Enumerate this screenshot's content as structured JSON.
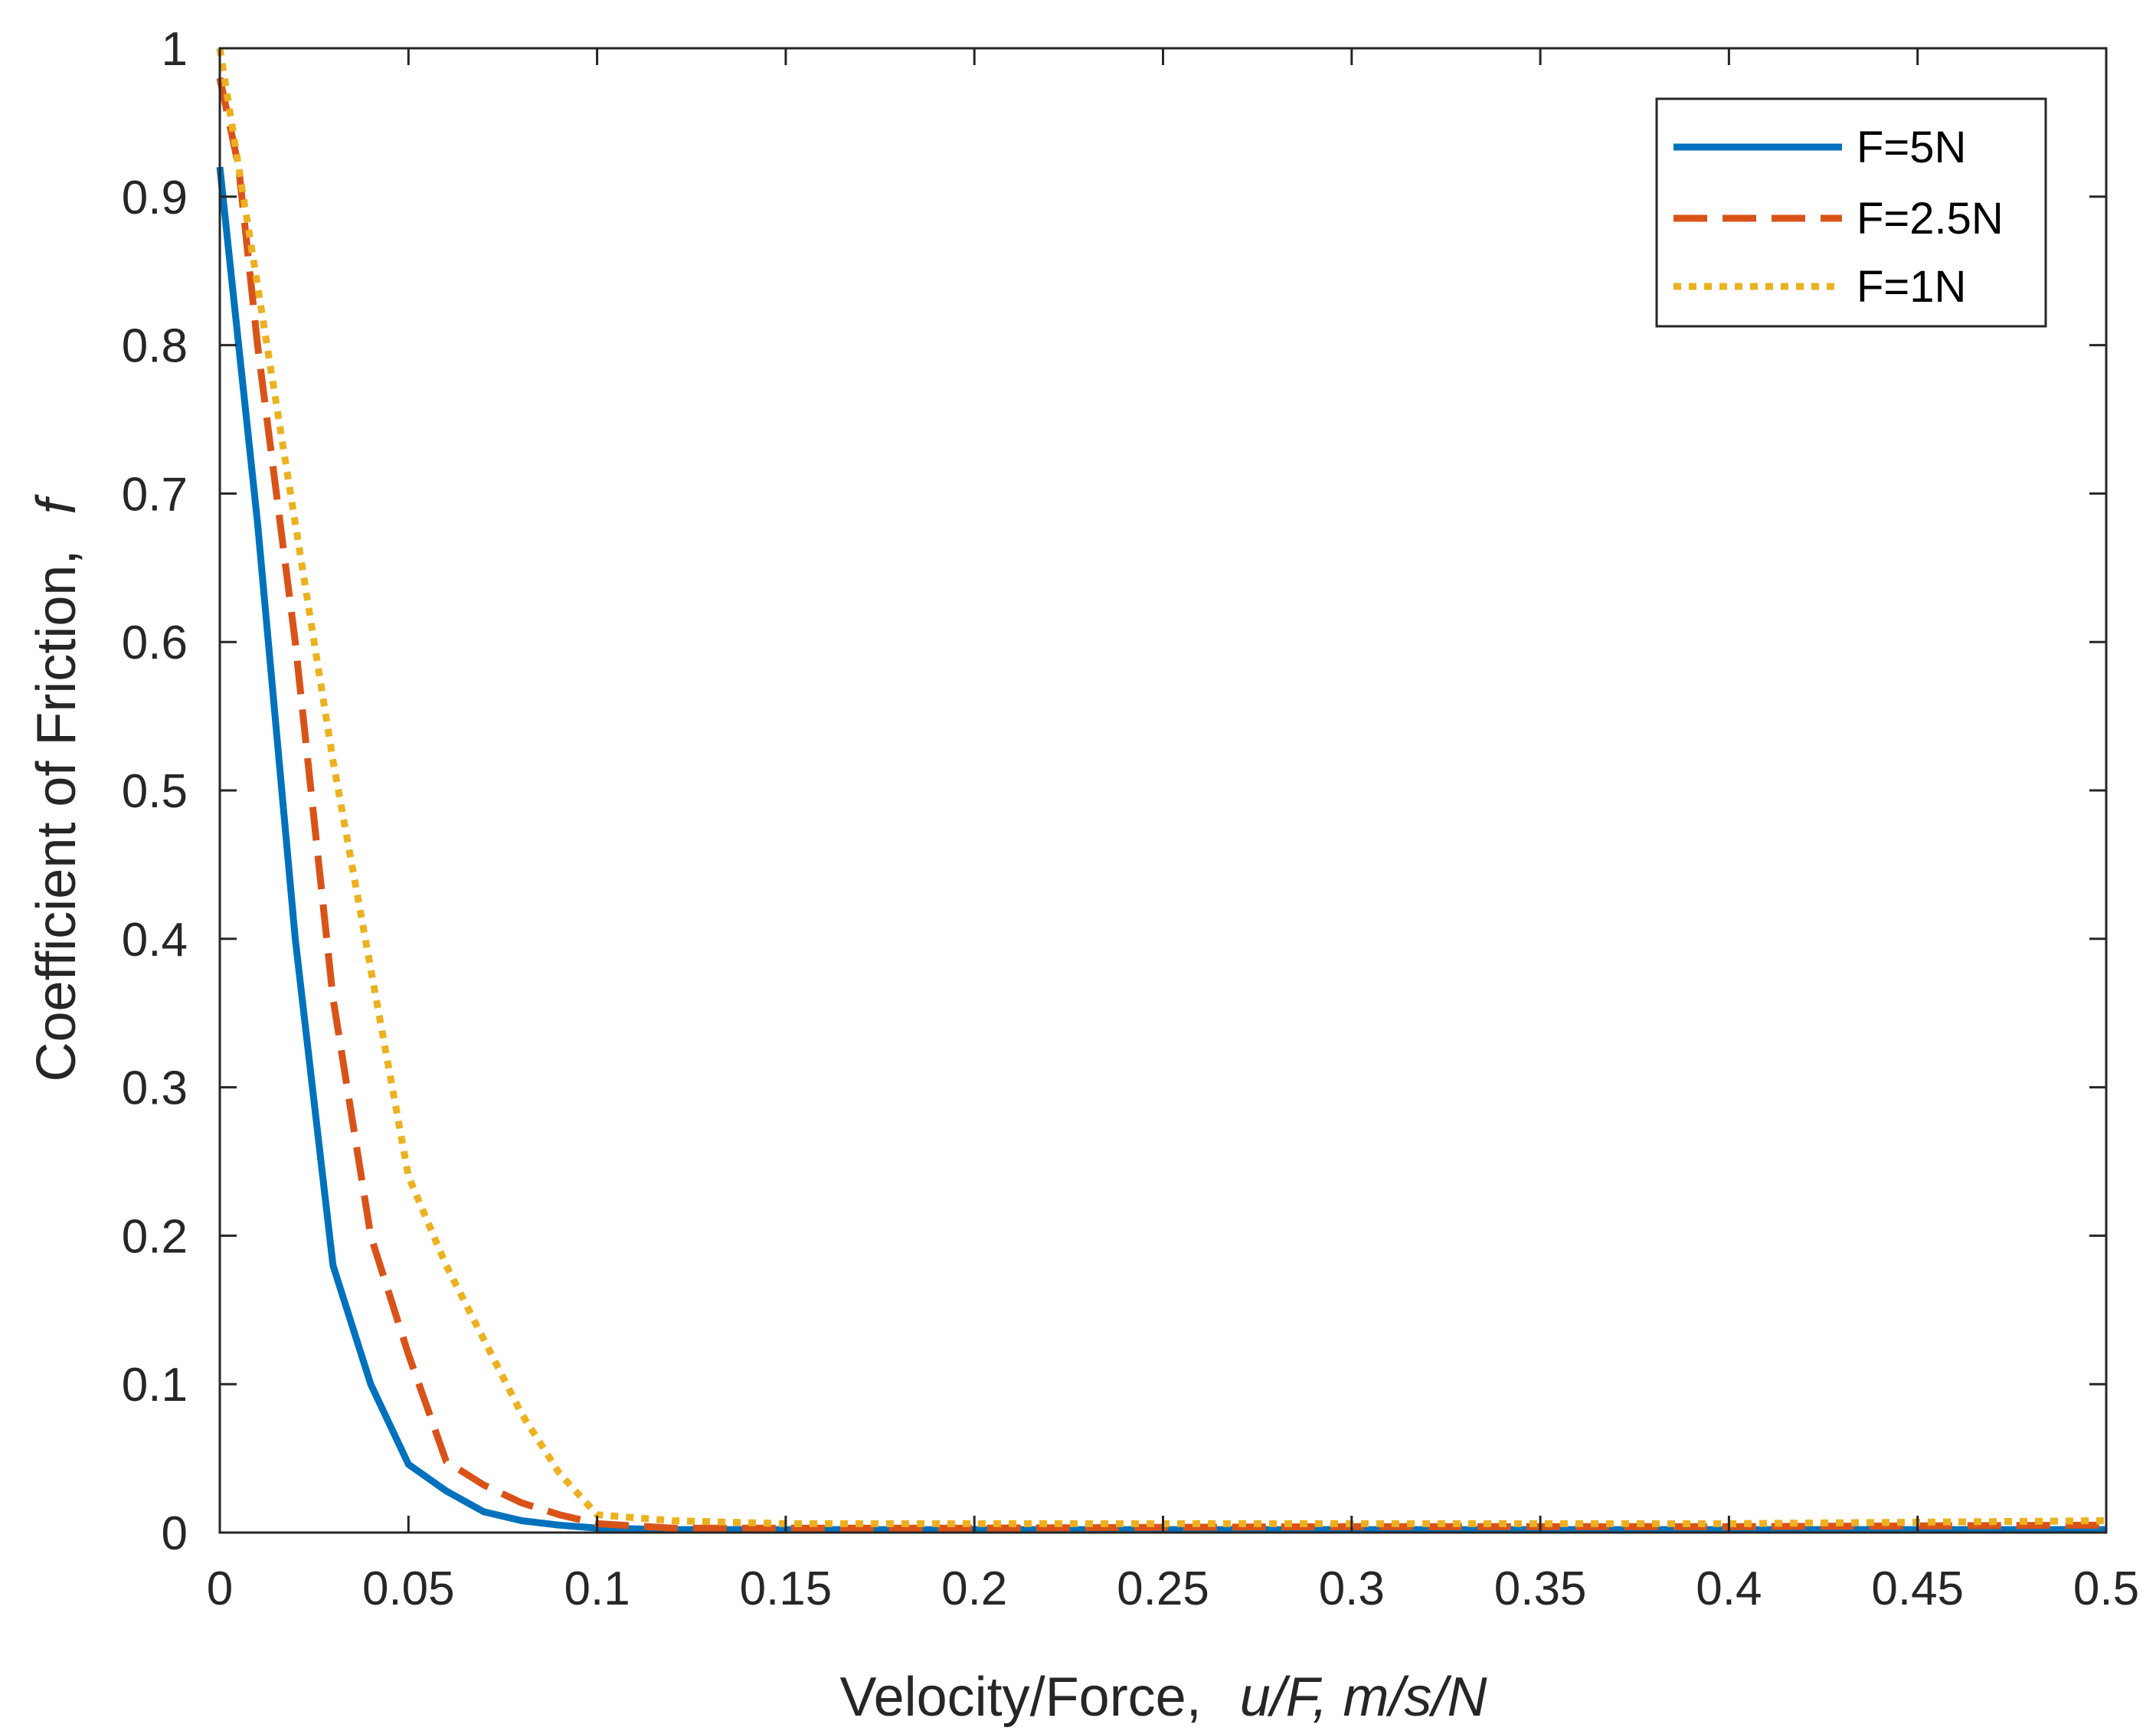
{
  "chart_data": {
    "type": "line",
    "title": "",
    "xlabel_plain": "Velocity/Force,",
    "xlabel_italic": "u/F, m/s/N",
    "ylabel_plain": "Coefficient of Friction,",
    "ylabel_italic": "f",
    "xlim": [
      0,
      0.5
    ],
    "ylim": [
      0,
      1
    ],
    "xticks": [
      0,
      0.05,
      0.1,
      0.15,
      0.2,
      0.25,
      0.3,
      0.35,
      0.4,
      0.45,
      0.5
    ],
    "xtick_labels": [
      "0",
      "0.05",
      "0.1",
      "0.15",
      "0.2",
      "0.25",
      "0.3",
      "0.35",
      "0.4",
      "0.45",
      "0.5"
    ],
    "yticks": [
      0,
      0.1,
      0.2,
      0.3,
      0.4,
      0.5,
      0.6,
      0.7,
      0.8,
      0.9,
      1
    ],
    "ytick_labels": [
      "0",
      "0.1",
      "0.2",
      "0.3",
      "0.4",
      "0.5",
      "0.6",
      "0.7",
      "0.8",
      "0.9",
      "1"
    ],
    "grid": false,
    "legend_position": "top-right",
    "series": [
      {
        "name": "F=5N",
        "color": "#0072BD",
        "style": "solid",
        "x": [
          0,
          0.005,
          0.01,
          0.02,
          0.03,
          0.04,
          0.05,
          0.06,
          0.07,
          0.08,
          0.09,
          0.1,
          0.12,
          0.15,
          0.2,
          0.3,
          0.4,
          0.5
        ],
        "y": [
          0.92,
          0.8,
          0.68,
          0.4,
          0.18,
          0.1,
          0.046,
          0.028,
          0.014,
          0.008,
          0.005,
          0.003,
          0.002,
          0.002,
          0.002,
          0.002,
          0.002,
          0.002
        ]
      },
      {
        "name": "F=2.5N",
        "color": "#D95319",
        "style": "dashed",
        "x": [
          0,
          0.005,
          0.01,
          0.02,
          0.03,
          0.04,
          0.05,
          0.06,
          0.07,
          0.08,
          0.09,
          0.1,
          0.12,
          0.15,
          0.2,
          0.3,
          0.4,
          0.5
        ],
        "y": [
          0.98,
          0.92,
          0.8,
          0.6,
          0.36,
          0.2,
          0.12,
          0.048,
          0.032,
          0.02,
          0.012,
          0.006,
          0.003,
          0.003,
          0.003,
          0.004,
          0.004,
          0.005
        ]
      },
      {
        "name": "F=1N",
        "color": "#EDB120",
        "style": "dotted",
        "x": [
          0,
          0.005,
          0.01,
          0.02,
          0.03,
          0.04,
          0.05,
          0.06,
          0.07,
          0.08,
          0.09,
          0.1,
          0.12,
          0.15,
          0.2,
          0.3,
          0.4,
          0.5
        ],
        "y": [
          1.0,
          0.92,
          0.84,
          0.68,
          0.52,
          0.38,
          0.24,
          0.18,
          0.13,
          0.08,
          0.04,
          0.012,
          0.008,
          0.006,
          0.006,
          0.006,
          0.006,
          0.008
        ]
      }
    ]
  }
}
